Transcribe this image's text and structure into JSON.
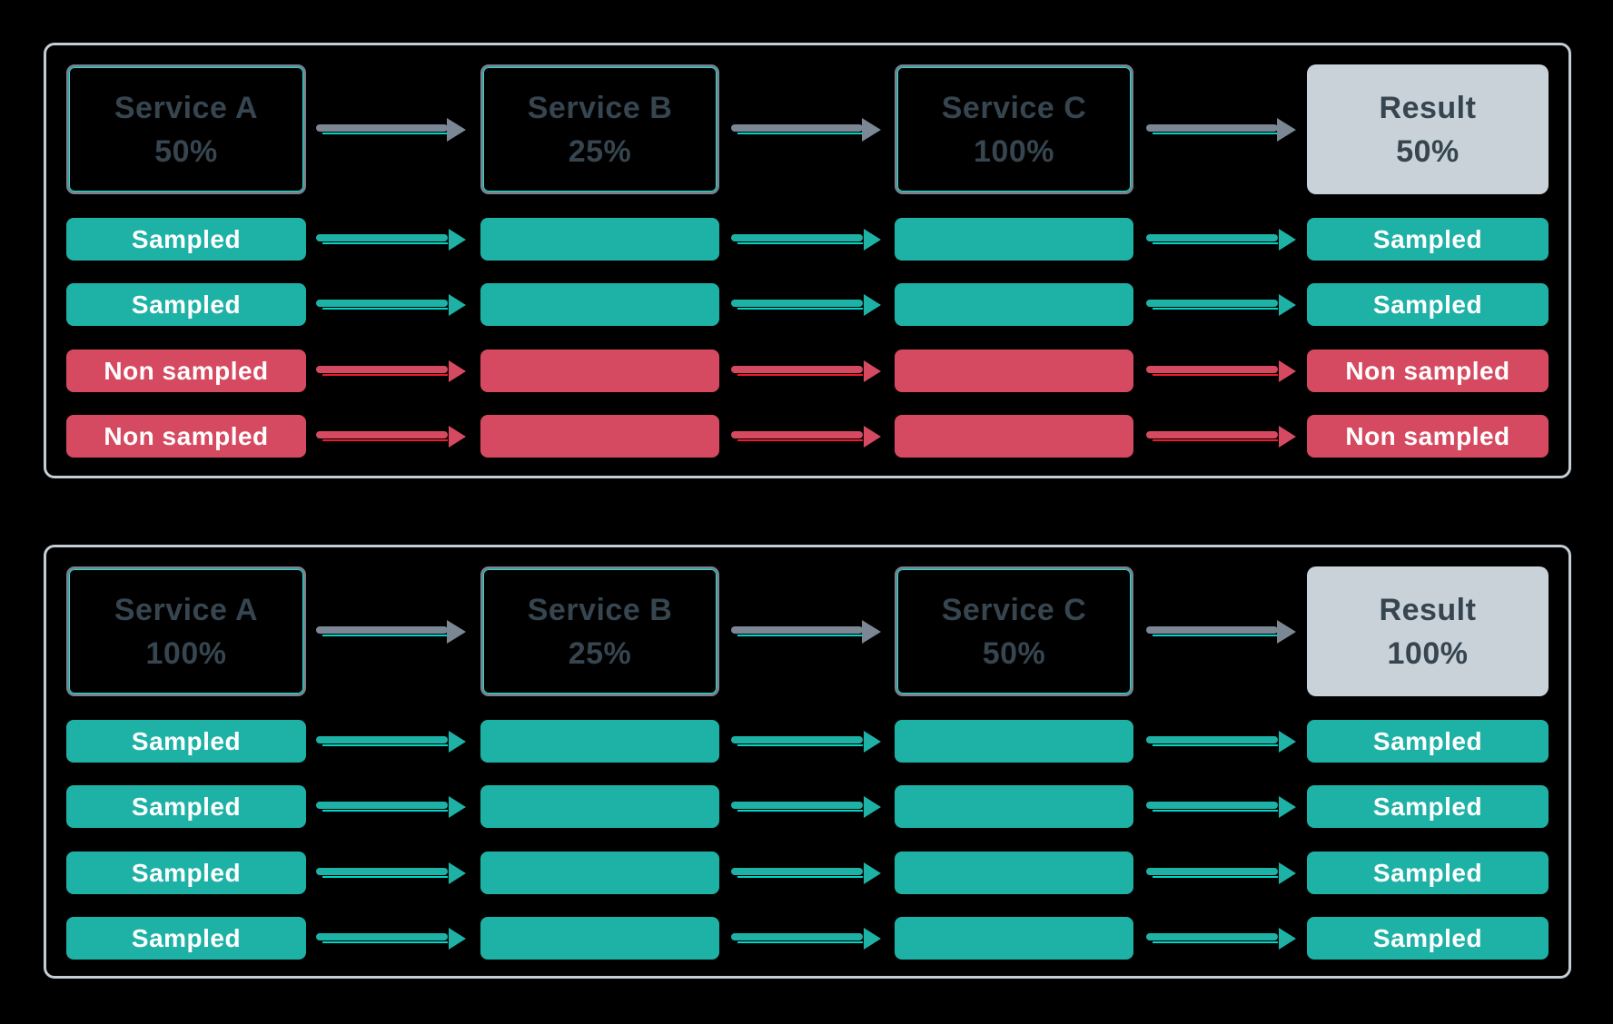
{
  "colors": {
    "background": "#000000",
    "panel_border": "#C5CDD4",
    "service_box_border": "#77838F",
    "service_box_accent": "#17E2D3",
    "dark_text": "#36454F",
    "sampled_teal": "#1EB2A6",
    "teal_accent_line": "#00D6C6",
    "non_sampled_rose": "#D64A61",
    "red_accent_line": "#EE1B2D",
    "grey_arrow": "#7B8794",
    "result_box_bg": "#C9D2D9",
    "pill_text": "#FFFFFF"
  },
  "panels": [
    {
      "name": "head-based-sampling-50",
      "services": [
        {
          "label": "Service A",
          "rate": "50%"
        },
        {
          "label": "Service B",
          "rate": "25%"
        },
        {
          "label": "Service C",
          "rate": "100%"
        }
      ],
      "result": {
        "label": "Result",
        "rate": "50%"
      },
      "rows": [
        {
          "state": "sampled",
          "label": "Sampled"
        },
        {
          "state": "sampled",
          "label": "Sampled"
        },
        {
          "state": "non-sampled",
          "label": "Non sampled"
        },
        {
          "state": "non-sampled",
          "label": "Non sampled"
        }
      ]
    },
    {
      "name": "head-based-sampling-100",
      "services": [
        {
          "label": "Service A",
          "rate": "100%"
        },
        {
          "label": "Service B",
          "rate": "25%"
        },
        {
          "label": "Service C",
          "rate": "50%"
        }
      ],
      "result": {
        "label": "Result",
        "rate": "100%"
      },
      "rows": [
        {
          "state": "sampled",
          "label": "Sampled"
        },
        {
          "state": "sampled",
          "label": "Sampled"
        },
        {
          "state": "sampled",
          "label": "Sampled"
        },
        {
          "state": "sampled",
          "label": "Sampled"
        }
      ]
    }
  ]
}
